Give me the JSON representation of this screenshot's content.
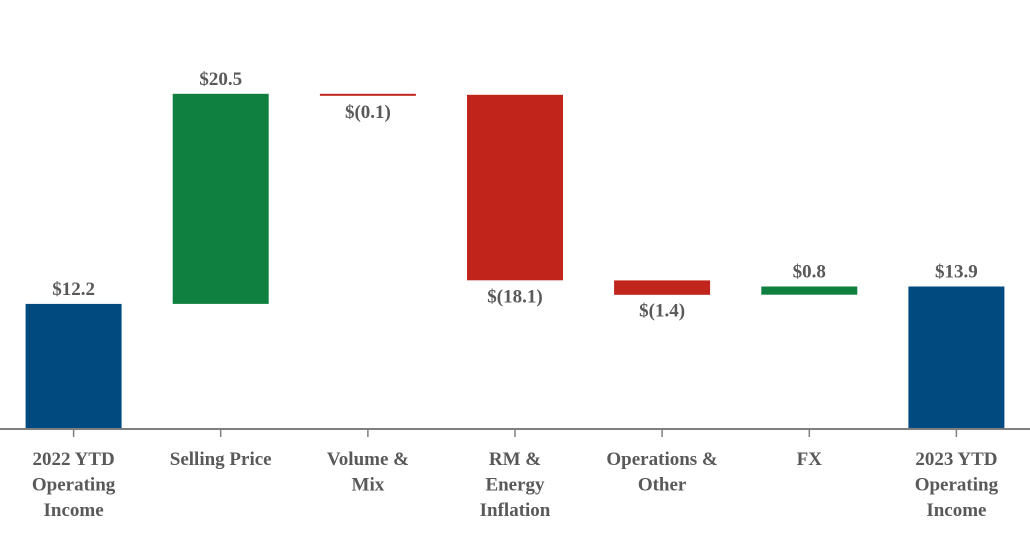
{
  "chart_data": {
    "type": "waterfall",
    "title": "",
    "xlabel": "",
    "ylabel": "",
    "categories": [
      [
        "2022 YTD",
        "Operating",
        "Income"
      ],
      [
        "Selling Price"
      ],
      [
        "Volume &",
        "Mix"
      ],
      [
        "RM &",
        "Energy",
        "Inflation"
      ],
      [
        "Operations &",
        "Other"
      ],
      [
        "FX"
      ],
      [
        "2023 YTD",
        "Operating",
        "Income"
      ]
    ],
    "values": [
      12.2,
      20.5,
      -0.1,
      -18.1,
      -1.4,
      0.8,
      13.9
    ],
    "kinds": [
      "total",
      "delta",
      "delta",
      "delta",
      "delta",
      "delta",
      "total"
    ],
    "value_labels": [
      "$12.2",
      "$20.5",
      "$(0.1)",
      "$(18.1)",
      "$(1.4)",
      "$0.8",
      "$13.9"
    ],
    "ylim": [
      0,
      36
    ],
    "grid": false,
    "legend": "none",
    "colors": {
      "total": "#004a80",
      "increase": "#108040",
      "decrease": "#c0241a",
      "axis": "#7f7f7f",
      "text": "#595959"
    }
  }
}
